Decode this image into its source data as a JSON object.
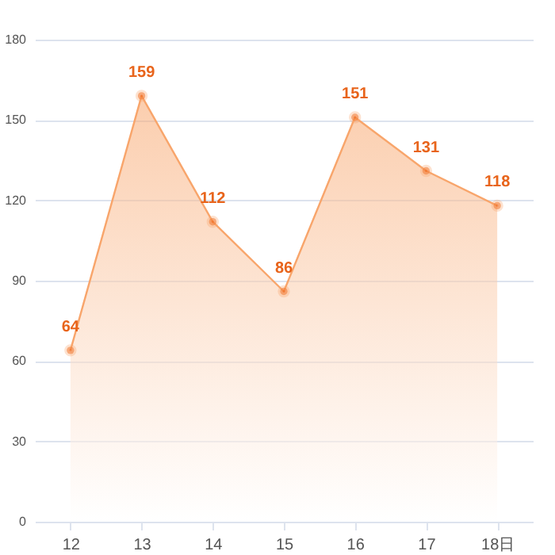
{
  "chart_data": {
    "type": "area",
    "categories": [
      "12",
      "13",
      "14",
      "15",
      "16",
      "17",
      "18日"
    ],
    "series": [
      {
        "color": "#f8a56b",
        "values": [
          64,
          159,
          112,
          86,
          151,
          131,
          118
        ]
      }
    ],
    "ylim": [
      0,
      180
    ],
    "yticks": [
      0,
      30,
      60,
      90,
      120,
      150,
      180
    ],
    "grid": "y",
    "marker": "circle",
    "data_labels": true
  }
}
